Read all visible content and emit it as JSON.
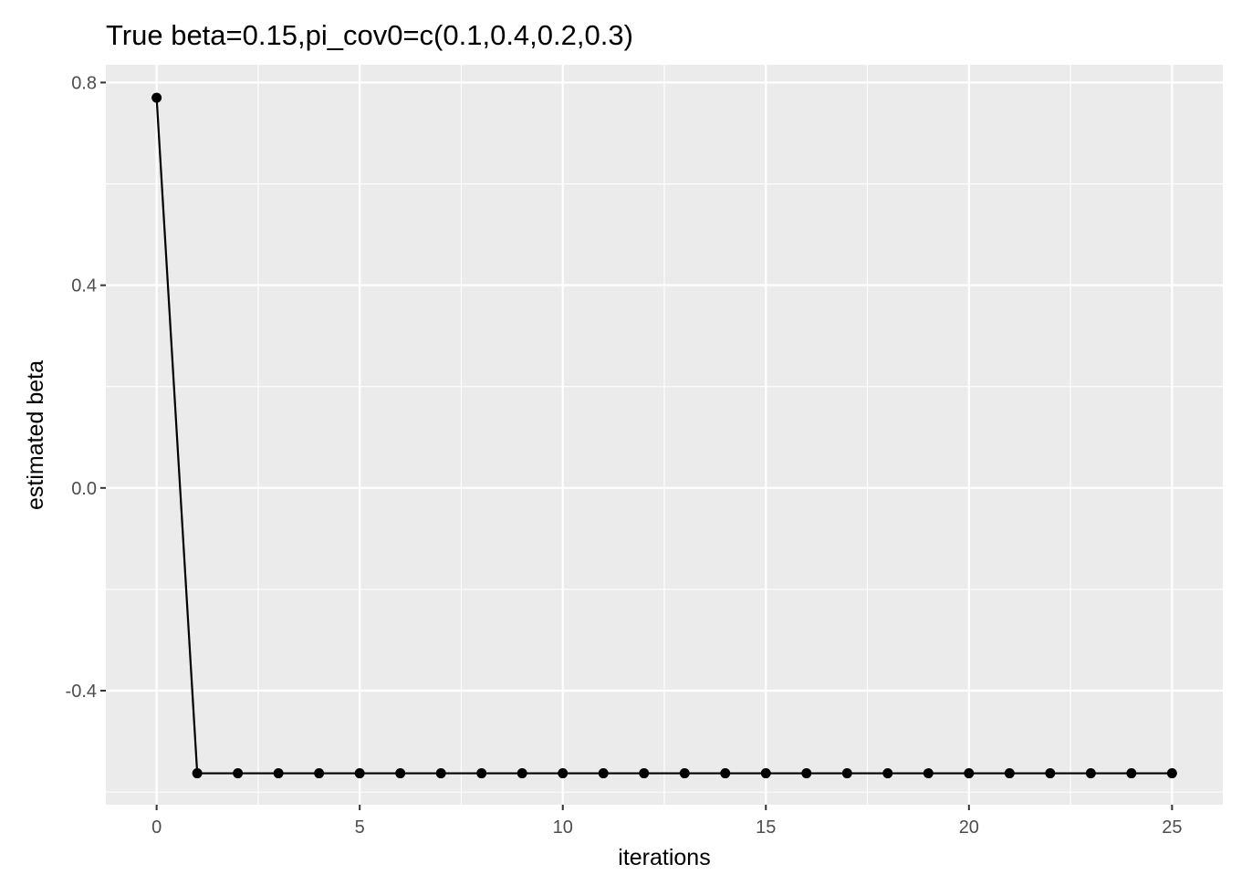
{
  "chart_data": {
    "type": "line",
    "title": "True beta=0.15,pi_cov0=c(0.1,0.4,0.2,0.3)",
    "xlabel": "iterations",
    "ylabel": "estimated beta",
    "xlim": [
      -1.25,
      26.25
    ],
    "ylim": [
      -0.625,
      0.835
    ],
    "x_ticks": [
      0,
      5,
      10,
      15,
      20,
      25
    ],
    "x_tick_labels": [
      "0",
      "5",
      "10",
      "15",
      "20",
      "25"
    ],
    "y_ticks": [
      0.8,
      0.4,
      0.0,
      -0.4
    ],
    "y_tick_labels": [
      "0.8",
      "0.4",
      "0.0",
      "-0.4"
    ],
    "x_minor_ticks": [
      2.5,
      7.5,
      12.5,
      17.5,
      22.5
    ],
    "y_minor_ticks": [
      0.6,
      0.2,
      -0.2,
      -0.6
    ],
    "grid": true,
    "colors": {
      "panel_background": "#ebebeb",
      "grid": "#ffffff",
      "line": "#000000",
      "point": "#000000",
      "tick_label": "#4d4d4d"
    },
    "series": [
      {
        "x": [
          0,
          1,
          2,
          3,
          4,
          5,
          6,
          7,
          8,
          9,
          10,
          11,
          12,
          13,
          14,
          15,
          16,
          17,
          18,
          19,
          20,
          21,
          22,
          23,
          24,
          25
        ],
        "values": [
          0.77,
          -0.563,
          -0.563,
          -0.563,
          -0.563,
          -0.563,
          -0.563,
          -0.563,
          -0.563,
          -0.563,
          -0.563,
          -0.563,
          -0.563,
          -0.563,
          -0.563,
          -0.563,
          -0.563,
          -0.563,
          -0.563,
          -0.563,
          -0.563,
          -0.563,
          -0.563,
          -0.563,
          -0.563,
          -0.563
        ]
      }
    ]
  }
}
